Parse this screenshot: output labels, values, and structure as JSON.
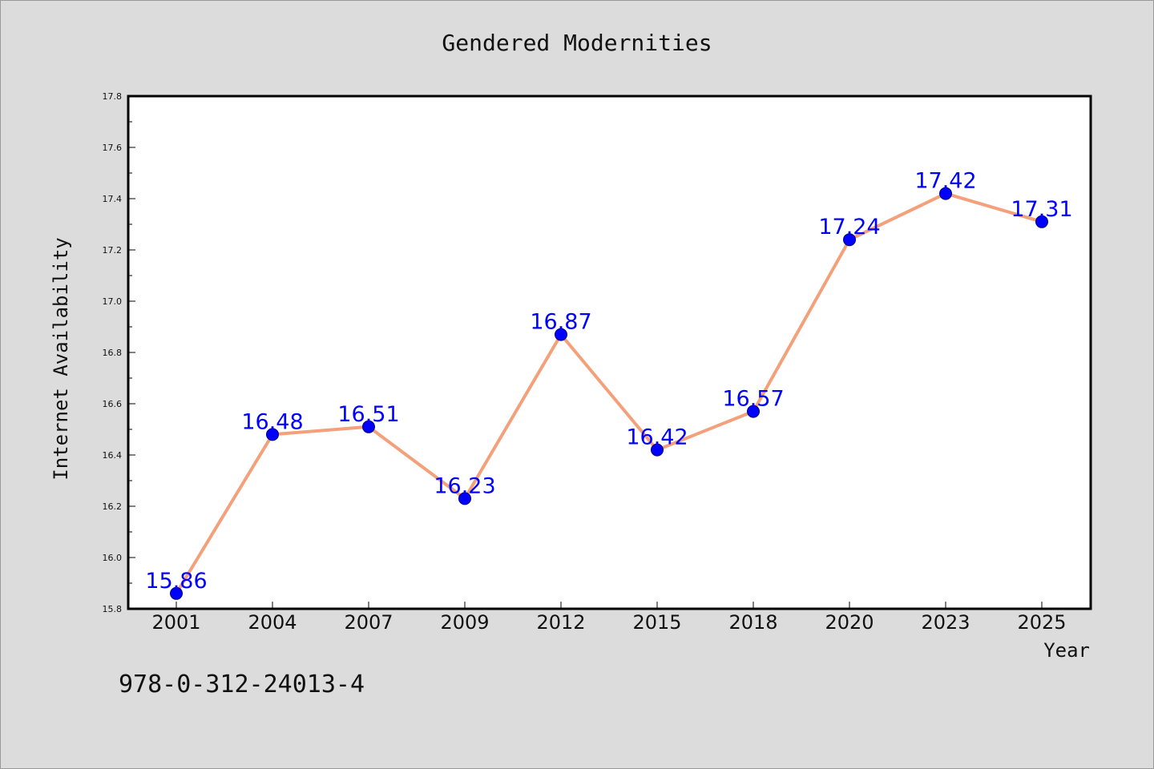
{
  "chart_data": {
    "type": "line",
    "title": "Gendered Modernities",
    "xlabel": "Year",
    "ylabel": "Internet Availability",
    "categories": [
      "2001",
      "2004",
      "2007",
      "2009",
      "2012",
      "2015",
      "2018",
      "2020",
      "2023",
      "2025"
    ],
    "values": [
      15.86,
      16.48,
      16.51,
      16.23,
      16.87,
      16.42,
      16.57,
      17.24,
      17.42,
      17.31
    ],
    "data_labels": [
      "15.86",
      "16.48",
      "16.51",
      "16.23",
      "16.87",
      "16.42",
      "16.57",
      "17.24",
      "17.42",
      "17.31"
    ],
    "ylim": [
      15.8,
      17.8
    ],
    "yticks": [
      "15.8",
      "16.0",
      "16.2",
      "16.4",
      "16.6",
      "16.8",
      "17.0",
      "17.2",
      "17.4",
      "17.6",
      "17.8"
    ],
    "grid": false,
    "line_color": "#f4a07a",
    "marker_color": "#0000ff",
    "label_color": "#0000ff"
  },
  "isbn": "978-0-312-24013-4",
  "colors": {
    "background": "#dcdcdc",
    "plot_background": "#ffffff"
  }
}
